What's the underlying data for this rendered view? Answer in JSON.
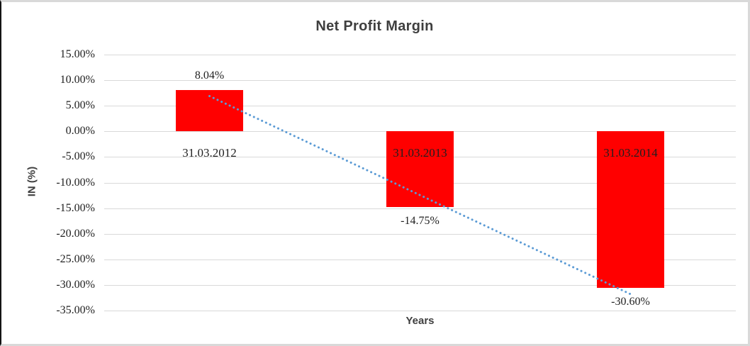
{
  "frame": {
    "background": "#FFFFFF",
    "border_color": "#D9D9D9",
    "left_edge_color": "#141414"
  },
  "chart_data": {
    "type": "bar",
    "title": "Net Profit Margin",
    "xlabel": "Years",
    "ylabel": "IN (%)",
    "categories": [
      "31.03.2012",
      "31.03.2013",
      "31.03.2014"
    ],
    "series": [
      {
        "name": "Net Profit Margin",
        "values": [
          8.04,
          -14.75,
          -30.6
        ]
      }
    ],
    "value_labels": [
      "8.04%",
      "-14.75%",
      "-30.60%"
    ],
    "ylim": [
      -35,
      15
    ],
    "ytick_step": 5,
    "yticks": [
      {
        "value": 15,
        "label": "15.00%"
      },
      {
        "value": 10,
        "label": "10.00%"
      },
      {
        "value": 5,
        "label": "5.00%"
      },
      {
        "value": 0,
        "label": "0.00%"
      },
      {
        "value": -5,
        "label": "-5.00%"
      },
      {
        "value": -10,
        "label": "-10.00%"
      },
      {
        "value": -15,
        "label": "-15.00%"
      },
      {
        "value": -20,
        "label": "-20.00%"
      },
      {
        "value": -25,
        "label": "-25.00%"
      },
      {
        "value": -30,
        "label": "-30.00%"
      },
      {
        "value": -35,
        "label": "-35.00%"
      }
    ],
    "grid": true,
    "legend": false,
    "bar_color": "#FF0000",
    "gridline_color": "#D9D9D9",
    "label_color": "#1F1F1F",
    "title_color": "#3F3F3F",
    "trendline": {
      "type": "linear",
      "style": "dotted",
      "color": "#5B9BD5",
      "start_value": 6.9,
      "end_value": -31.8
    }
  }
}
